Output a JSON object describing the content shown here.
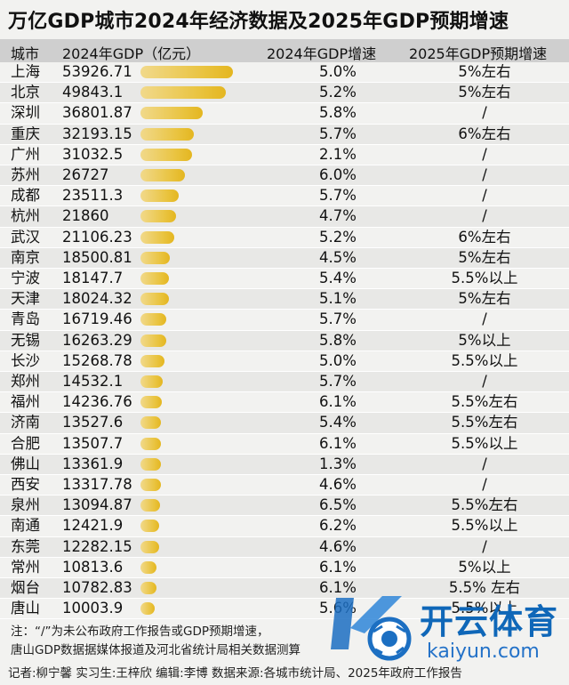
{
  "title": "万亿GDP城市2024年经济数据及2025年GDP预期增速",
  "header": {
    "city": "城市",
    "gdp": "2024年GDP（亿元）",
    "growth_2024": "2024年GDP增速",
    "target_2025": "2025年GDP预期增速"
  },
  "chart_data": {
    "type": "table",
    "title": "万亿GDP城市2024年经济数据及2025年GDP预期增速",
    "columns": [
      "城市",
      "2024年GDP（亿元）",
      "2024年GDP增速",
      "2025年GDP预期增速"
    ],
    "rows": [
      {
        "city": "上海",
        "gdp": "53926.71",
        "growth": "5.0%",
        "target": "5%左右"
      },
      {
        "city": "北京",
        "gdp": "49843.1",
        "growth": "5.2%",
        "target": "5%左右"
      },
      {
        "city": "深圳",
        "gdp": "36801.87",
        "growth": "5.8%",
        "target": "/"
      },
      {
        "city": "重庆",
        "gdp": "32193.15",
        "growth": "5.7%",
        "target": "6%左右"
      },
      {
        "city": "广州",
        "gdp": "31032.5",
        "growth": "2.1%",
        "target": "/"
      },
      {
        "city": "苏州",
        "gdp": "26727",
        "growth": "6.0%",
        "target": "/"
      },
      {
        "city": "成都",
        "gdp": "23511.3",
        "growth": "5.7%",
        "target": "/"
      },
      {
        "city": "杭州",
        "gdp": "21860",
        "growth": "4.7%",
        "target": "/"
      },
      {
        "city": "武汉",
        "gdp": "21106.23",
        "growth": "5.2%",
        "target": "6%左右"
      },
      {
        "city": "南京",
        "gdp": "18500.81",
        "growth": "4.5%",
        "target": "5%左右"
      },
      {
        "city": "宁波",
        "gdp": "18147.7",
        "growth": "5.4%",
        "target": "5.5%以上"
      },
      {
        "city": "天津",
        "gdp": "18024.32",
        "growth": "5.1%",
        "target": "5%左右"
      },
      {
        "city": "青岛",
        "gdp": "16719.46",
        "growth": "5.7%",
        "target": "/"
      },
      {
        "city": "无锡",
        "gdp": "16263.29",
        "growth": "5.8%",
        "target": "5%以上"
      },
      {
        "city": "长沙",
        "gdp": "15268.78",
        "growth": "5.0%",
        "target": "5.5%以上"
      },
      {
        "city": "郑州",
        "gdp": "14532.1",
        "growth": "5.7%",
        "target": "/"
      },
      {
        "city": "福州",
        "gdp": "14236.76",
        "growth": "6.1%",
        "target": "5.5%左右"
      },
      {
        "city": "济南",
        "gdp": "13527.6",
        "growth": "5.4%",
        "target": "5.5%左右"
      },
      {
        "city": "合肥",
        "gdp": "13507.7",
        "growth": "6.1%",
        "target": "5.5%以上"
      },
      {
        "city": "佛山",
        "gdp": "13361.9",
        "growth": "1.3%",
        "target": "/"
      },
      {
        "city": "西安",
        "gdp": "13317.78",
        "growth": "4.6%",
        "target": "/"
      },
      {
        "city": "泉州",
        "gdp": "13094.87",
        "growth": "6.5%",
        "target": "5.5%左右"
      },
      {
        "city": "南通",
        "gdp": "12421.9",
        "growth": "6.2%",
        "target": "5.5%以上"
      },
      {
        "city": "东莞",
        "gdp": "12282.15",
        "growth": "4.6%",
        "target": "/"
      },
      {
        "city": "常州",
        "gdp": "10813.6",
        "growth": "6.1%",
        "target": "5%以上"
      },
      {
        "city": "烟台",
        "gdp": "10782.83",
        "growth": "6.1%",
        "target": "5.5% 左右"
      },
      {
        "city": "唐山",
        "gdp": "10003.9",
        "growth": "5.6%",
        "target": "5.5%以上"
      }
    ],
    "bar_color": "#e9c33e"
  },
  "notes": {
    "line1": "注：“/”为未公布政府工作报告或GDP预期增速，",
    "line2": "唐山GDP数据据媒体报道及河北省统计局相关数据测算"
  },
  "credits": "记者:柳宁馨   实习生:王梓欣   编辑:李博   数据来源:各城市统计局、2025年政府工作报告",
  "watermark": {
    "brand": "开云体育",
    "url": "kaiyun.com"
  }
}
